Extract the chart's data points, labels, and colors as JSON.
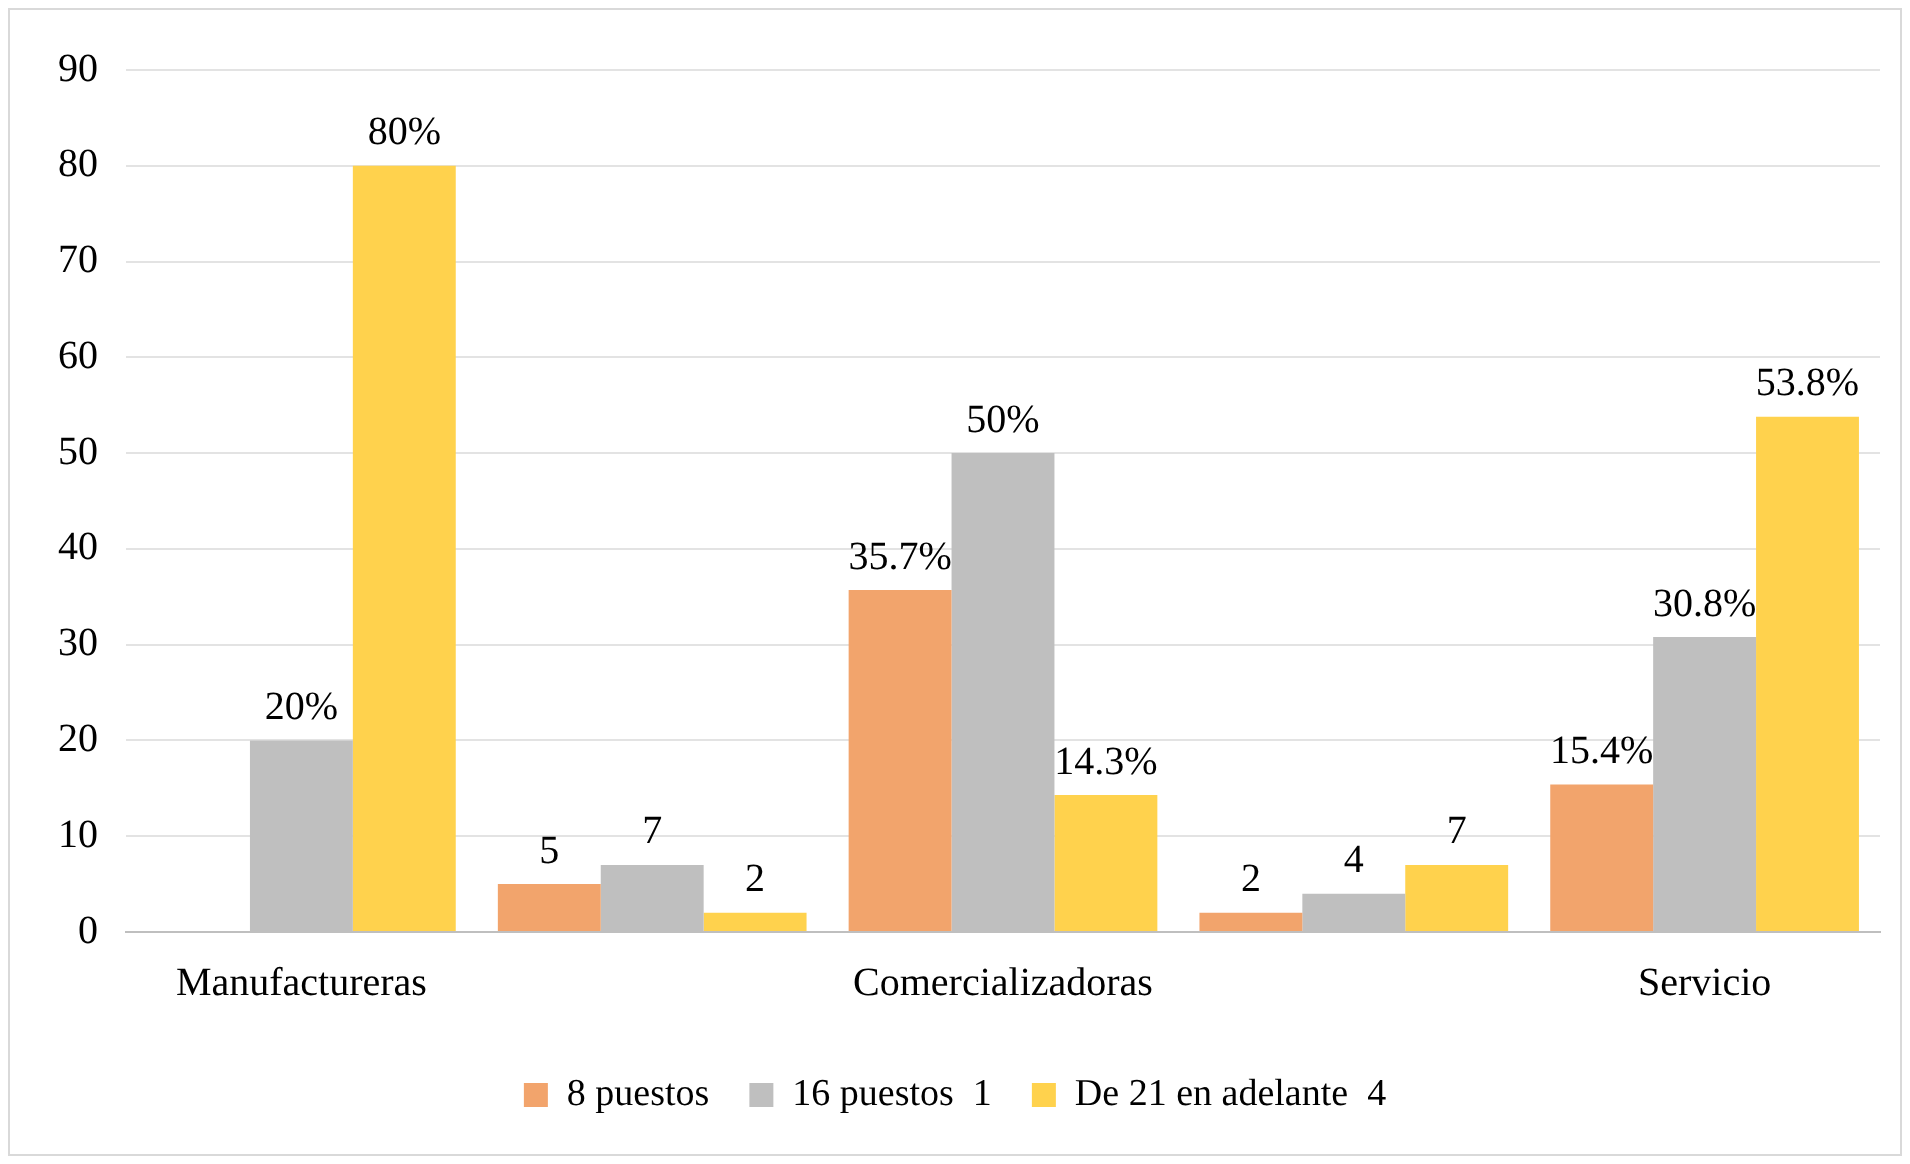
{
  "chart_data": {
    "type": "bar",
    "categories": [
      "Manufactureras",
      null,
      "Comercializadoras",
      null,
      "Servicio"
    ],
    "series": [
      {
        "name": "8 puestos",
        "color": "#f2a46c",
        "values": [
          0,
          5,
          35.7,
          2,
          15.4
        ],
        "value_labels": [
          null,
          "5",
          "35.7%",
          "2",
          "15.4%"
        ]
      },
      {
        "name": "16 puestos  1",
        "color": "#bfbfbf",
        "values": [
          20,
          7,
          50,
          4,
          30.8
        ],
        "value_labels": [
          "20%",
          "7",
          "50%",
          "4",
          "30.8%"
        ]
      },
      {
        "name": "De 21 en adelante  4",
        "color": "#ffd24d",
        "values": [
          80,
          2,
          14.3,
          7,
          53.8
        ],
        "value_labels": [
          "80%",
          "2",
          "14.3%",
          "7",
          "53.8%"
        ]
      }
    ],
    "ylim": [
      0,
      90
    ],
    "yticks": [
      0,
      10,
      20,
      30,
      40,
      50,
      60,
      70,
      80,
      90
    ],
    "grid": "y",
    "legend": "bottom"
  }
}
